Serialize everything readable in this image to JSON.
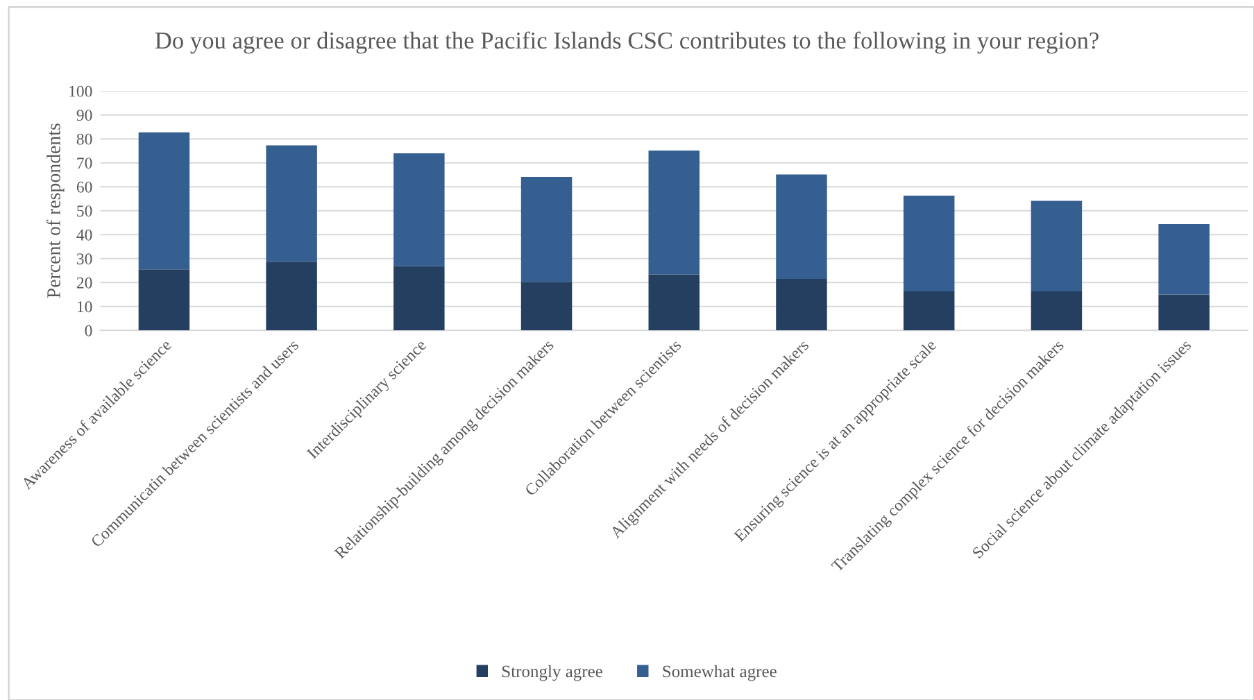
{
  "chart_data": {
    "type": "bar",
    "stacked": true,
    "title": "Do you agree or disagree that the Pacific Islands CSC contributes to the following in your region?",
    "ylabel": "Percent of respondents",
    "categories": [
      "Awareness of available science",
      "Communicatin between scientists and users",
      "Interdisciplinary science",
      "Relationship-building among decision makers",
      "Collaboration between scientists",
      "Alignment with needs of decision makers",
      "Ensuring science is at an appropriate scale",
      "Translating complex science for decision makers",
      "Social science about climate adaptation issues"
    ],
    "series": [
      {
        "name": "Strongly agree",
        "color": "#253f61",
        "values": [
          25.5,
          28.7,
          26.8,
          20.3,
          23.4,
          21.5,
          16.3,
          16.3,
          15.0
        ]
      },
      {
        "name": "Somewhat agree",
        "color": "#355f91",
        "values": [
          57.2,
          48.6,
          47.2,
          43.8,
          51.7,
          43.6,
          40.0,
          37.8,
          29.4
        ]
      }
    ],
    "ylim": [
      0,
      100
    ],
    "yticks": [
      0,
      10,
      20,
      30,
      40,
      50,
      60,
      70,
      80,
      90,
      100
    ],
    "grid": "y",
    "legend": "bottom"
  }
}
